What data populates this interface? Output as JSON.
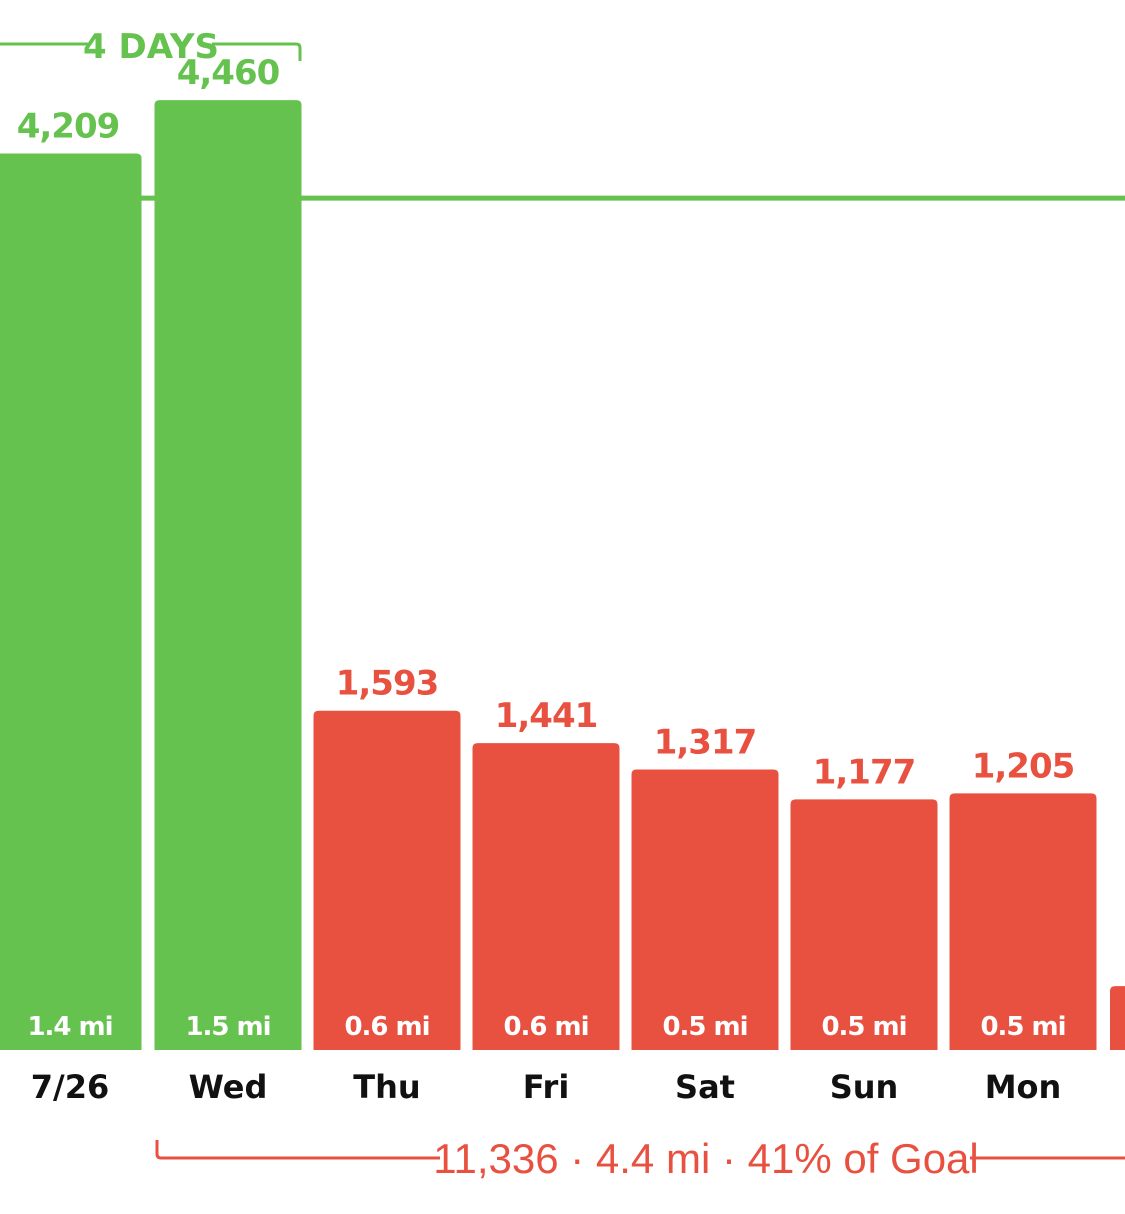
{
  "colors": {
    "goal_met": "#65c24f",
    "goal_missed": "#e85040",
    "day_label": "#111111",
    "distance_label": "#ffffff"
  },
  "streak": {
    "label": "4 DAYS"
  },
  "summary": {
    "text": "11,336 · 4.4 mi · 41% of Goal"
  },
  "chart_data": {
    "type": "bar",
    "categories": [
      "7/26",
      "Wed",
      "Thu",
      "Fri",
      "Sat",
      "Sun",
      "Mon"
    ],
    "values": [
      4209,
      4460,
      1593,
      1441,
      1317,
      1177,
      1205
    ],
    "value_labels": [
      "4,209",
      "4,460",
      "1,593",
      "1,441",
      "1,317",
      "1,177",
      "1,205"
    ],
    "distance_labels": [
      "1.4 mi",
      "1.5 mi",
      "0.6 mi",
      "0.6 mi",
      "0.5 mi",
      "0.5 mi",
      "0.5 mi"
    ],
    "goal_met": [
      true,
      true,
      false,
      false,
      false,
      false,
      false
    ],
    "goal_line": 4000,
    "partial_next_bar_value": 300,
    "ylim": [
      0,
      4930
    ],
    "grid": false,
    "title": "",
    "xlabel": "",
    "ylabel": ""
  }
}
